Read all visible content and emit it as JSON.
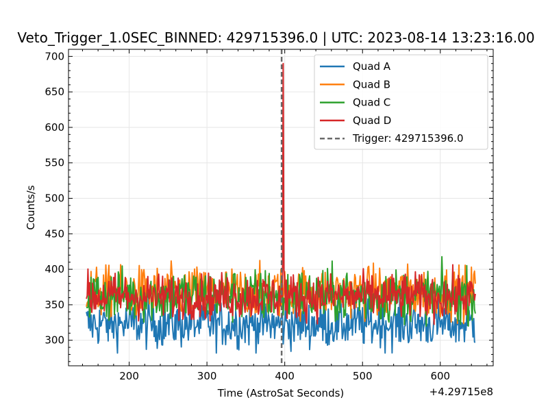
{
  "chart_data": {
    "type": "line",
    "title": "Veto_Trigger_1.0SEC_BINNED: 429715396.0 | UTC: 2023-08-14 13:23:16.00",
    "xlabel": "Time (AstroSat Seconds)",
    "ylabel": "Counts/s",
    "x_offset_label": "+4.29715e8",
    "xlim": [
      122,
      668
    ],
    "ylim": [
      264,
      710
    ],
    "x_ticks": [
      200,
      300,
      400,
      500,
      600
    ],
    "y_ticks": [
      300,
      350,
      400,
      450,
      500,
      550,
      600,
      650,
      700
    ],
    "x_tick_labels": [
      "200",
      "300",
      "400",
      "500",
      "600"
    ],
    "y_tick_labels": [
      "300",
      "350",
      "400",
      "450",
      "500",
      "550",
      "600",
      "650",
      "700"
    ],
    "grid": true,
    "legend_position": "top-right",
    "x_start": 145,
    "x_end": 645,
    "series": [
      {
        "name": "Quad A",
        "color": "#1f77b4",
        "baseline": 323,
        "amplitude": 17,
        "min": 282,
        "max": 370
      },
      {
        "name": "Quad B",
        "color": "#ff7f0e",
        "baseline": 368,
        "amplitude": 18,
        "min": 315,
        "max": 450
      },
      {
        "name": "Quad C",
        "color": "#2ca02c",
        "baseline": 363,
        "amplitude": 19,
        "min": 320,
        "max": 443
      },
      {
        "name": "Quad D",
        "color": "#d62728",
        "baseline": 362,
        "amplitude": 16,
        "min": 318,
        "max": 690
      }
    ],
    "spike": {
      "series": "Quad D",
      "x": 398,
      "peak": 690,
      "after": 400
    },
    "trigger": {
      "label": "Trigger: 429715396.0",
      "x": 396,
      "color": "#6a6a6a",
      "style": "dashed"
    }
  }
}
